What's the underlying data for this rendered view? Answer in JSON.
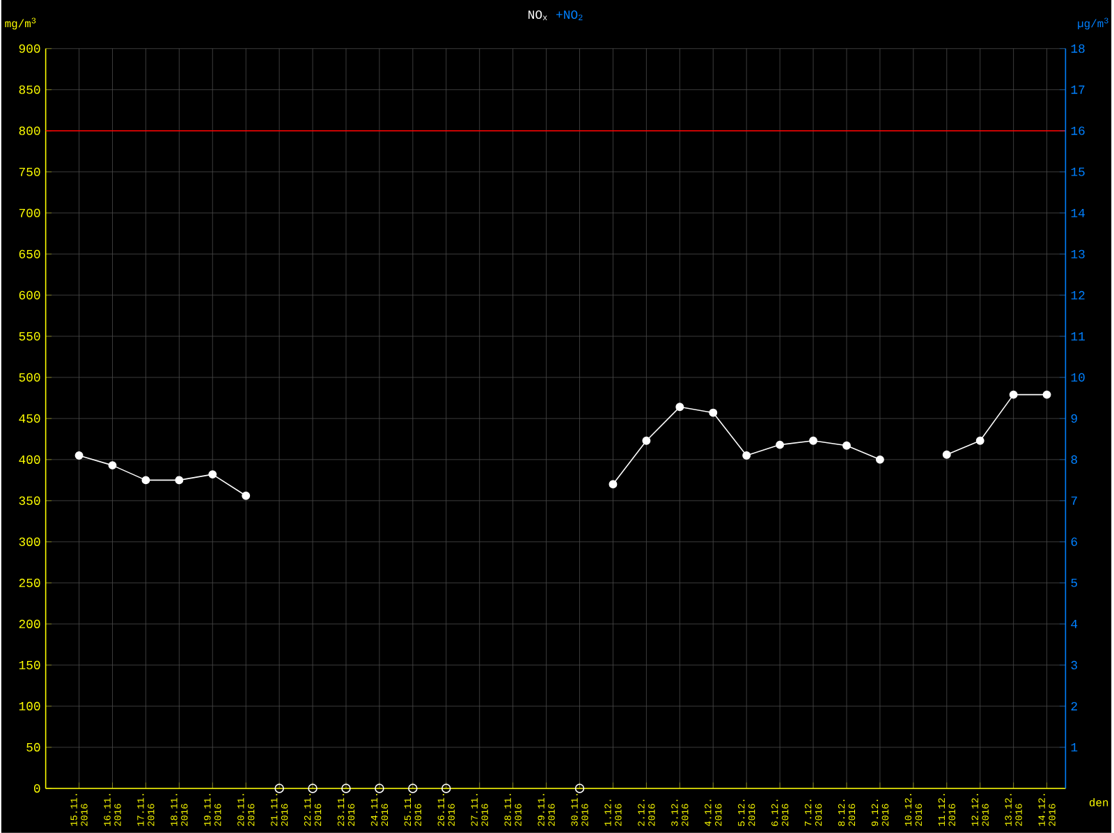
{
  "chart_data": {
    "type": "line",
    "title": "NO$_{x}$",
    "subtitle": "+NO$_{2}$",
    "xlabel": "den",
    "ylabel": "mg/m$^{3}$",
    "y2label": "µg/m$^{3}$",
    "categories": [
      "15.11. 2016",
      "16.11. 2016",
      "17.11. 2016",
      "18.11. 2016",
      "19.11. 2016",
      "20.11. 2016",
      "21.11. 2016",
      "22.11. 2016",
      "23.11. 2016",
      "24.11. 2016",
      "25.11. 2016",
      "26.11. 2016",
      "27.11. 2016",
      "28.11. 2016",
      "29.11. 2016",
      "30.11. 2016",
      "1.12. 2016",
      "2.12. 2016",
      "3.12. 2016",
      "4.12. 2016",
      "5.12. 2016",
      "6.12. 2016",
      "7.12. 2016",
      "8.12. 2016",
      "9.12. 2016",
      "10.12. 2016",
      "11.12. 2016",
      "12.12. 2016",
      "13.12. 2016",
      "14.12. 2016"
    ],
    "series": [
      {
        "color": "#ffffff",
        "marker": "circle",
        "values": [
          405,
          393,
          375,
          375,
          382,
          356,
          null,
          null,
          null,
          null,
          null,
          null,
          null,
          null,
          null,
          null,
          370,
          423,
          464,
          457,
          405,
          418,
          423,
          417,
          400,
          null,
          406,
          423,
          479,
          479
        ]
      },
      {
        "color": "#ffffff",
        "type": "scatter",
        "axis": "y2",
        "marker": "circle",
        "values": [
          null,
          null,
          null,
          null,
          null,
          null,
          0,
          0,
          0,
          0,
          0,
          0,
          null,
          null,
          null,
          0,
          null,
          null,
          null,
          null,
          null,
          null,
          null,
          null,
          null,
          null,
          null,
          null,
          null,
          null
        ]
      }
    ],
    "ylim": [
      0,
      900
    ],
    "yticks": [
      0,
      50,
      100,
      150,
      200,
      250,
      300,
      350,
      400,
      450,
      500,
      550,
      600,
      650,
      700,
      750,
      800,
      850,
      900
    ],
    "y2lim": [
      0,
      18
    ],
    "y2ticks": [
      1,
      2,
      3,
      4,
      5,
      6,
      7,
      8,
      9,
      10,
      11,
      12,
      13,
      14,
      15,
      16,
      17,
      18
    ],
    "ref_lines": [
      {
        "axis": "y",
        "value": 800,
        "color": "#ff0000"
      }
    ],
    "grid": true
  }
}
